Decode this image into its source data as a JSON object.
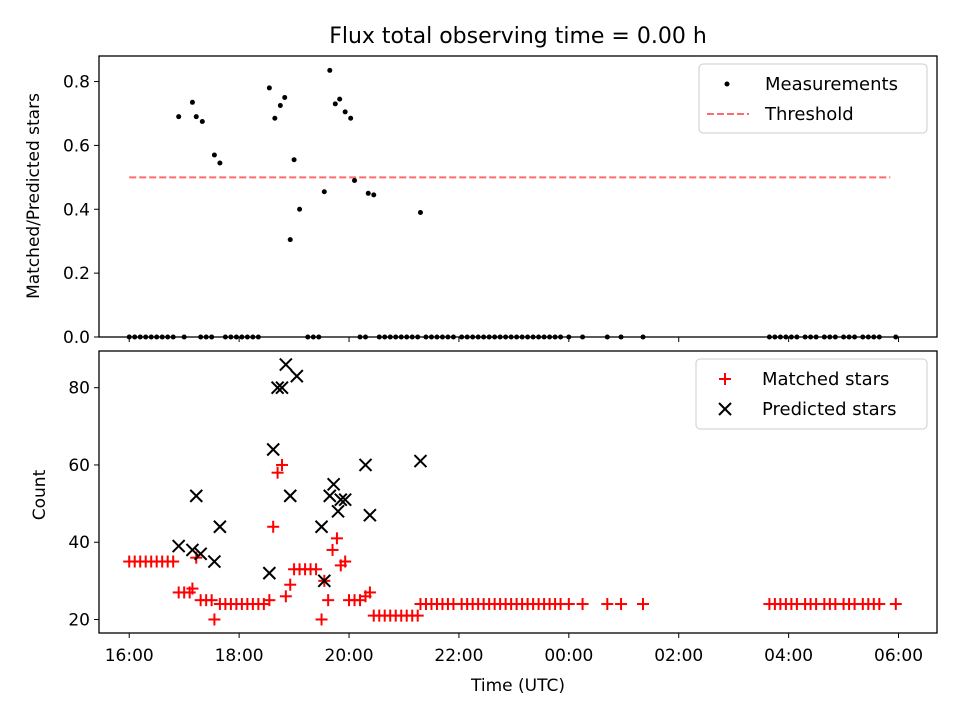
{
  "chart_data": [
    {
      "type": "scatter",
      "title": "Flux total observing time = 0.00 h",
      "xlabel": "",
      "ylabel": "Matched/Predicted stars",
      "x_range_hours_since_16": [
        -0.55,
        14.7
      ],
      "ylim": [
        0,
        0.88
      ],
      "yticks": [
        0.0,
        0.2,
        0.4,
        0.6,
        0.8
      ],
      "ytick_labels": [
        "0.0",
        "0.2",
        "0.4",
        "0.6",
        "0.8"
      ],
      "legend": {
        "position": "top-right",
        "entries": [
          "Measurements",
          "Threshold"
        ]
      },
      "threshold": {
        "name": "Threshold",
        "value": 0.5,
        "x_start": 0.0,
        "x_end": 13.85,
        "color": "#ff6b6b"
      },
      "series": [
        {
          "name": "Measurements",
          "color": "#000000",
          "points": [
            [
              0.0,
              0
            ],
            [
              0.1,
              0
            ],
            [
              0.2,
              0
            ],
            [
              0.3,
              0
            ],
            [
              0.4,
              0
            ],
            [
              0.5,
              0
            ],
            [
              0.6,
              0
            ],
            [
              0.7,
              0
            ],
            [
              0.8,
              0
            ],
            [
              0.9,
              0.69
            ],
            [
              1.0,
              0
            ],
            [
              1.15,
              0.735
            ],
            [
              1.22,
              0.69
            ],
            [
              1.3,
              0
            ],
            [
              1.33,
              0.675
            ],
            [
              1.4,
              0
            ],
            [
              1.5,
              0
            ],
            [
              1.55,
              0.57
            ],
            [
              1.65,
              0.545
            ],
            [
              1.75,
              0
            ],
            [
              1.85,
              0
            ],
            [
              1.95,
              0
            ],
            [
              2.05,
              0
            ],
            [
              2.15,
              0
            ],
            [
              2.25,
              0
            ],
            [
              2.35,
              0
            ],
            [
              2.55,
              0.78
            ],
            [
              2.65,
              0.685
            ],
            [
              2.75,
              0.725
            ],
            [
              2.83,
              0.75
            ],
            [
              2.93,
              0.305
            ],
            [
              3.0,
              0.555
            ],
            [
              3.1,
              0.4
            ],
            [
              3.25,
              0
            ],
            [
              3.35,
              0
            ],
            [
              3.45,
              0
            ],
            [
              3.55,
              0.455
            ],
            [
              3.65,
              0.835
            ],
            [
              3.75,
              0.73
            ],
            [
              3.83,
              0.745
            ],
            [
              3.93,
              0.705
            ],
            [
              4.03,
              0.685
            ],
            [
              4.1,
              0.49
            ],
            [
              4.2,
              0
            ],
            [
              4.3,
              0
            ],
            [
              4.35,
              0.45
            ],
            [
              4.45,
              0.445
            ],
            [
              4.55,
              0
            ],
            [
              4.65,
              0
            ],
            [
              4.75,
              0
            ],
            [
              4.85,
              0
            ],
            [
              4.95,
              0
            ],
            [
              5.05,
              0
            ],
            [
              5.15,
              0
            ],
            [
              5.25,
              0
            ],
            [
              5.3,
              0.39
            ],
            [
              5.4,
              0
            ],
            [
              5.5,
              0
            ],
            [
              5.6,
              0
            ],
            [
              5.7,
              0
            ],
            [
              5.8,
              0
            ],
            [
              5.9,
              0
            ],
            [
              6.05,
              0
            ],
            [
              6.15,
              0
            ],
            [
              6.25,
              0
            ],
            [
              6.35,
              0
            ],
            [
              6.45,
              0
            ],
            [
              6.55,
              0
            ],
            [
              6.65,
              0
            ],
            [
              6.75,
              0
            ],
            [
              6.85,
              0
            ],
            [
              6.95,
              0
            ],
            [
              7.05,
              0
            ],
            [
              7.15,
              0
            ],
            [
              7.25,
              0
            ],
            [
              7.35,
              0
            ],
            [
              7.45,
              0
            ],
            [
              7.55,
              0
            ],
            [
              7.65,
              0
            ],
            [
              7.75,
              0
            ],
            [
              7.85,
              0
            ],
            [
              8.0,
              0
            ],
            [
              8.25,
              0
            ],
            [
              8.7,
              0
            ],
            [
              8.95,
              0
            ],
            [
              9.35,
              0
            ],
            [
              11.65,
              0
            ],
            [
              11.75,
              0
            ],
            [
              11.85,
              0
            ],
            [
              11.95,
              0
            ],
            [
              12.05,
              0
            ],
            [
              12.15,
              0
            ],
            [
              12.3,
              0
            ],
            [
              12.4,
              0
            ],
            [
              12.5,
              0
            ],
            [
              12.65,
              0
            ],
            [
              12.75,
              0
            ],
            [
              12.85,
              0
            ],
            [
              13.0,
              0
            ],
            [
              13.1,
              0
            ],
            [
              13.2,
              0
            ],
            [
              13.35,
              0
            ],
            [
              13.45,
              0
            ],
            [
              13.55,
              0
            ],
            [
              13.65,
              0
            ],
            [
              13.95,
              0
            ]
          ]
        }
      ]
    },
    {
      "type": "scatter",
      "title": "",
      "xlabel": "Time (UTC)",
      "ylabel": "Count",
      "x_range_hours_since_16": [
        -0.55,
        14.7
      ],
      "xticks_hours_since_16": [
        0,
        2,
        4,
        6,
        8,
        10,
        12,
        14
      ],
      "xtick_labels": [
        "16:00",
        "18:00",
        "20:00",
        "22:00",
        "00:00",
        "02:00",
        "04:00",
        "06:00"
      ],
      "ylim": [
        16.5,
        89.5
      ],
      "yticks": [
        20,
        40,
        60,
        80
      ],
      "ytick_labels": [
        "20",
        "40",
        "60",
        "80"
      ],
      "legend": {
        "position": "top-right",
        "entries": [
          "Matched stars",
          "Predicted stars"
        ]
      },
      "series": [
        {
          "name": "Matched stars",
          "marker": "+",
          "color": "#ff0000",
          "points": [
            [
              0.0,
              35
            ],
            [
              0.1,
              35
            ],
            [
              0.2,
              35
            ],
            [
              0.3,
              35
            ],
            [
              0.4,
              35
            ],
            [
              0.5,
              35
            ],
            [
              0.6,
              35
            ],
            [
              0.7,
              35
            ],
            [
              0.8,
              35
            ],
            [
              0.9,
              27
            ],
            [
              1.0,
              27
            ],
            [
              1.1,
              27
            ],
            [
              1.15,
              28
            ],
            [
              1.22,
              36
            ],
            [
              1.3,
              25
            ],
            [
              1.4,
              25
            ],
            [
              1.5,
              25
            ],
            [
              1.55,
              20
            ],
            [
              1.65,
              24
            ],
            [
              1.75,
              24
            ],
            [
              1.85,
              24
            ],
            [
              1.95,
              24
            ],
            [
              2.05,
              24
            ],
            [
              2.15,
              24
            ],
            [
              2.25,
              24
            ],
            [
              2.35,
              24
            ],
            [
              2.45,
              24
            ],
            [
              2.55,
              25
            ],
            [
              2.62,
              44
            ],
            [
              2.7,
              58
            ],
            [
              2.78,
              60
            ],
            [
              2.85,
              26
            ],
            [
              2.93,
              29
            ],
            [
              3.0,
              33
            ],
            [
              3.1,
              33
            ],
            [
              3.2,
              33
            ],
            [
              3.3,
              33
            ],
            [
              3.4,
              33
            ],
            [
              3.5,
              20
            ],
            [
              3.55,
              30
            ],
            [
              3.62,
              25
            ],
            [
              3.7,
              38
            ],
            [
              3.78,
              41
            ],
            [
              3.85,
              34
            ],
            [
              3.93,
              35
            ],
            [
              4.0,
              25
            ],
            [
              4.1,
              25
            ],
            [
              4.2,
              25
            ],
            [
              4.3,
              26
            ],
            [
              4.38,
              27
            ],
            [
              4.45,
              21
            ],
            [
              4.55,
              21
            ],
            [
              4.65,
              21
            ],
            [
              4.75,
              21
            ],
            [
              4.85,
              21
            ],
            [
              4.95,
              21
            ],
            [
              5.05,
              21
            ],
            [
              5.15,
              21
            ],
            [
              5.25,
              21
            ],
            [
              5.3,
              24
            ],
            [
              5.4,
              24
            ],
            [
              5.5,
              24
            ],
            [
              5.6,
              24
            ],
            [
              5.7,
              24
            ],
            [
              5.8,
              24
            ],
            [
              5.9,
              24
            ],
            [
              6.05,
              24
            ],
            [
              6.15,
              24
            ],
            [
              6.25,
              24
            ],
            [
              6.35,
              24
            ],
            [
              6.45,
              24
            ],
            [
              6.55,
              24
            ],
            [
              6.65,
              24
            ],
            [
              6.75,
              24
            ],
            [
              6.85,
              24
            ],
            [
              6.95,
              24
            ],
            [
              7.05,
              24
            ],
            [
              7.15,
              24
            ],
            [
              7.25,
              24
            ],
            [
              7.35,
              24
            ],
            [
              7.45,
              24
            ],
            [
              7.55,
              24
            ],
            [
              7.65,
              24
            ],
            [
              7.75,
              24
            ],
            [
              7.85,
              24
            ],
            [
              8.0,
              24
            ],
            [
              8.25,
              24
            ],
            [
              8.7,
              24
            ],
            [
              8.95,
              24
            ],
            [
              9.35,
              24
            ],
            [
              11.65,
              24
            ],
            [
              11.75,
              24
            ],
            [
              11.85,
              24
            ],
            [
              11.95,
              24
            ],
            [
              12.05,
              24
            ],
            [
              12.15,
              24
            ],
            [
              12.3,
              24
            ],
            [
              12.4,
              24
            ],
            [
              12.5,
              24
            ],
            [
              12.65,
              24
            ],
            [
              12.75,
              24
            ],
            [
              12.85,
              24
            ],
            [
              13.0,
              24
            ],
            [
              13.1,
              24
            ],
            [
              13.2,
              24
            ],
            [
              13.35,
              24
            ],
            [
              13.45,
              24
            ],
            [
              13.55,
              24
            ],
            [
              13.65,
              24
            ],
            [
              13.95,
              24
            ]
          ]
        },
        {
          "name": "Predicted stars",
          "marker": "x",
          "color": "#000000",
          "points": [
            [
              0.9,
              39
            ],
            [
              1.15,
              38
            ],
            [
              1.22,
              52
            ],
            [
              1.3,
              37
            ],
            [
              1.55,
              35
            ],
            [
              1.65,
              44
            ],
            [
              2.55,
              32
            ],
            [
              2.62,
              64
            ],
            [
              2.7,
              80
            ],
            [
              2.78,
              80
            ],
            [
              2.85,
              86
            ],
            [
              2.93,
              52
            ],
            [
              3.05,
              83
            ],
            [
              3.5,
              44
            ],
            [
              3.55,
              30
            ],
            [
              3.65,
              52
            ],
            [
              3.72,
              55
            ],
            [
              3.8,
              48
            ],
            [
              3.85,
              51
            ],
            [
              3.93,
              51
            ],
            [
              4.3,
              60
            ],
            [
              4.38,
              47
            ],
            [
              5.3,
              61
            ]
          ]
        }
      ]
    }
  ]
}
